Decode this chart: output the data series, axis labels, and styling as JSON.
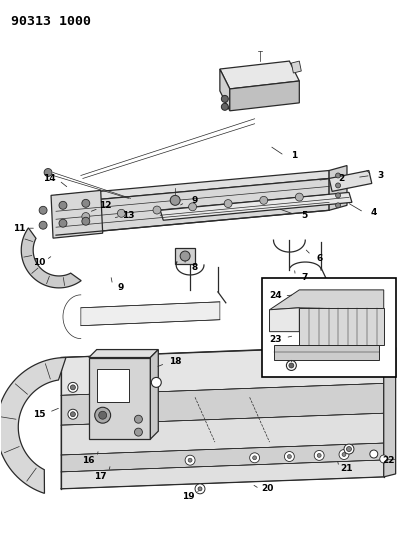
{
  "title": "90313 1000",
  "bg_color": "#ffffff",
  "fig_width": 4.02,
  "fig_height": 5.33,
  "dpi": 100,
  "line_color": "#2a2a2a",
  "lw_main": 0.9,
  "lw_thin": 0.5,
  "callout_fontsize": 6.5,
  "title_fontsize": 9.5
}
